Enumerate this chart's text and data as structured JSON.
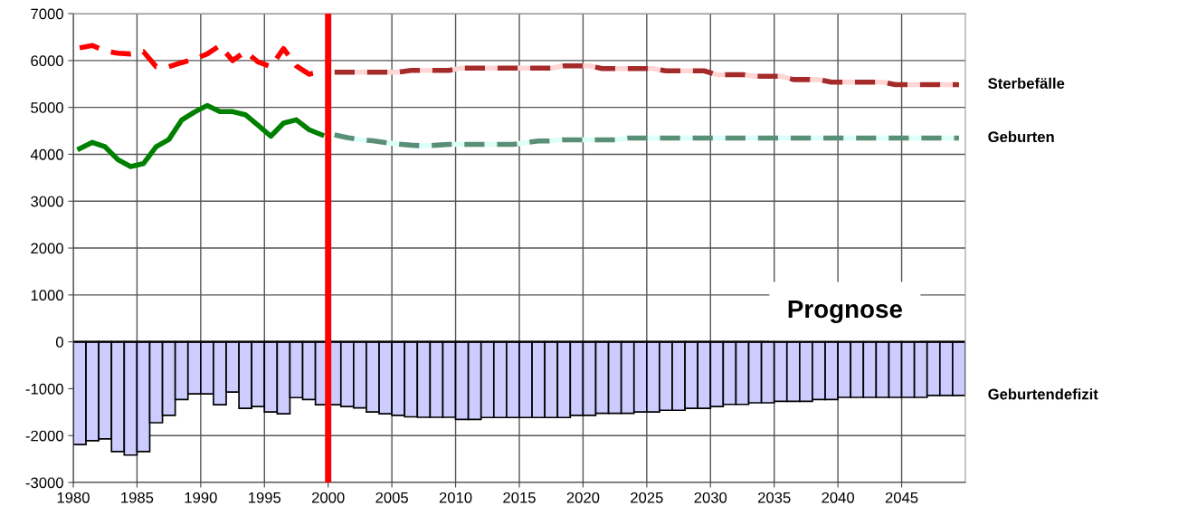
{
  "chart_data": {
    "type": "bar",
    "xlim": [
      1980,
      2050
    ],
    "xticks": [
      1980,
      1985,
      1990,
      1995,
      2000,
      2005,
      2010,
      2015,
      2020,
      2025,
      2030,
      2035,
      2040,
      2045
    ],
    "ylim": [
      -3000,
      7000
    ],
    "yticks": [
      -3000,
      -2000,
      -1000,
      0,
      1000,
      2000,
      3000,
      4000,
      5000,
      6000,
      7000
    ],
    "grid": true,
    "legend": false,
    "annotations": [
      "Prognose"
    ],
    "ref_lines": [
      {
        "axis": "x",
        "value": 2000,
        "color": "#ff0000"
      }
    ],
    "series": [
      {
        "name": "Geburtendefizit",
        "color": "#ccccff",
        "x": [
          1980.5,
          1981.5,
          1982.5,
          1983.5,
          1984.5,
          1985.5,
          1986.5,
          1987.5,
          1988.5,
          1989.5,
          1990.5,
          1991.5,
          1992.5,
          1993.5,
          1994.5,
          1995.5,
          1996.5,
          1997.5,
          1998.5,
          1999.5,
          2000.5,
          2001.5,
          2002.5,
          2003.5,
          2004.5,
          2005.5,
          2006.5,
          2007.5,
          2008.5,
          2009.5,
          2010.5,
          2011.5,
          2012.5,
          2013.5,
          2014.5,
          2015.5,
          2016.5,
          2017.5,
          2018.5,
          2019.5,
          2020.5,
          2021.5,
          2022.5,
          2023.5,
          2024.5,
          2025.5,
          2026.5,
          2027.5,
          2028.5,
          2029.5,
          2030.5,
          2031.5,
          2032.5,
          2033.5,
          2034.5,
          2035.5,
          2036.5,
          2037.5,
          2038.5,
          2039.5,
          2040.5,
          2041.5,
          2042.5,
          2043.5,
          2044.5,
          2045.5,
          2046.5,
          2047.5,
          2048.5,
          2049.5
        ],
        "values": [
          -2190,
          -2110,
          -2070,
          -2340,
          -2415,
          -2340,
          -1725,
          -1570,
          -1230,
          -1110,
          -1110,
          -1340,
          -1070,
          -1420,
          -1380,
          -1495,
          -1535,
          -1190,
          -1230,
          -1340,
          -1340,
          -1380,
          -1410,
          -1495,
          -1535,
          -1570,
          -1600,
          -1610,
          -1610,
          -1610,
          -1655,
          -1655,
          -1615,
          -1615,
          -1615,
          -1615,
          -1615,
          -1615,
          -1615,
          -1570,
          -1570,
          -1525,
          -1525,
          -1525,
          -1495,
          -1495,
          -1460,
          -1460,
          -1420,
          -1420,
          -1380,
          -1335,
          -1335,
          -1300,
          -1300,
          -1270,
          -1270,
          -1270,
          -1230,
          -1230,
          -1185,
          -1185,
          -1185,
          -1185,
          -1185,
          -1185,
          -1185,
          -1145,
          -1145,
          -1145
        ]
      },
      {
        "type": "line",
        "color": "#ff0000",
        "line_style": "dashed",
        "x": [
          1980.5,
          1981.5,
          1982.5,
          1983.5,
          1984.5,
          1985.5,
          1986.5,
          1987.5,
          1988.5,
          1989.5,
          1990.5,
          1991.5,
          1992.5,
          1993.5,
          1994.5,
          1995.5,
          1996.5,
          1997.5,
          1998.5,
          1999.5
        ],
        "values": [
          6270,
          6320,
          6205,
          6155,
          6140,
          6190,
          5870,
          5870,
          5955,
          6030,
          6140,
          6320,
          6000,
          6190,
          5970,
          5870,
          6255,
          5885,
          5710,
          5760
        ]
      },
      {
        "type": "line",
        "color": "#008000",
        "line_style": "solid",
        "x": [
          1980.5,
          1981.5,
          1982.5,
          1983.5,
          1984.5,
          1985.5,
          1986.5,
          1987.5,
          1988.5,
          1989.5,
          1990.5,
          1991.5,
          1992.5,
          1993.5,
          1994.5,
          1995.5,
          1996.5,
          1997.5,
          1998.5,
          1999.5
        ],
        "values": [
          4120,
          4255,
          4160,
          3885,
          3740,
          3800,
          4160,
          4315,
          4730,
          4900,
          5040,
          4910,
          4910,
          4845,
          4620,
          4385,
          4665,
          4735,
          4525,
          4415
        ]
      },
      {
        "name": "Sterbefälle",
        "type": "line",
        "color": "#a52a2a",
        "line_style": "dashed",
        "x": [
          2000.5,
          2001.5,
          2002.5,
          2003.5,
          2004.5,
          2005.5,
          2006.5,
          2007.5,
          2008.5,
          2009.5,
          2010.5,
          2011.5,
          2012.5,
          2013.5,
          2014.5,
          2015.5,
          2016.5,
          2017.5,
          2018.5,
          2019.5,
          2020.5,
          2021.5,
          2022.5,
          2023.5,
          2024.5,
          2025.5,
          2026.5,
          2027.5,
          2028.5,
          2029.5,
          2030.5,
          2031.5,
          2032.5,
          2033.5,
          2034.5,
          2035.5,
          2036.5,
          2037.5,
          2038.5,
          2039.5,
          2040.5,
          2041.5,
          2042.5,
          2043.5,
          2044.5,
          2045.5,
          2046.5,
          2047.5,
          2048.5,
          2049.5
        ],
        "values": [
          5750,
          5750,
          5750,
          5750,
          5750,
          5750,
          5790,
          5790,
          5790,
          5790,
          5840,
          5840,
          5840,
          5840,
          5840,
          5840,
          5840,
          5840,
          5885,
          5885,
          5885,
          5830,
          5830,
          5830,
          5830,
          5830,
          5780,
          5780,
          5780,
          5780,
          5700,
          5700,
          5700,
          5665,
          5665,
          5665,
          5595,
          5595,
          5595,
          5540,
          5540,
          5540,
          5540,
          5540,
          5485,
          5485,
          5485,
          5485,
          5485,
          5485
        ]
      },
      {
        "name": "Geburten",
        "type": "line",
        "color": "#5a8f77",
        "line_style": "dashed",
        "x": [
          2000.5,
          2001.5,
          2002.5,
          2003.5,
          2004.5,
          2005.5,
          2006.5,
          2007.5,
          2008.5,
          2009.5,
          2010.5,
          2011.5,
          2012.5,
          2013.5,
          2014.5,
          2015.5,
          2016.5,
          2017.5,
          2018.5,
          2019.5,
          2020.5,
          2021.5,
          2022.5,
          2023.5,
          2024.5,
          2025.5,
          2026.5,
          2027.5,
          2028.5,
          2029.5,
          2030.5,
          2031.5,
          2032.5,
          2033.5,
          2034.5,
          2035.5,
          2036.5,
          2037.5,
          2038.5,
          2039.5,
          2040.5,
          2041.5,
          2042.5,
          2043.5,
          2044.5,
          2045.5,
          2046.5,
          2047.5,
          2048.5,
          2049.5
        ],
        "values": [
          4415,
          4355,
          4310,
          4290,
          4250,
          4220,
          4195,
          4180,
          4195,
          4210,
          4210,
          4210,
          4210,
          4210,
          4210,
          4250,
          4285,
          4285,
          4310,
          4310,
          4310,
          4310,
          4310,
          4345,
          4345,
          4345,
          4345,
          4345,
          4345,
          4345,
          4345,
          4345,
          4345,
          4345,
          4345,
          4345,
          4345,
          4345,
          4345,
          4345,
          4345,
          4345,
          4345,
          4345,
          4345,
          4345,
          4345,
          4345,
          4345,
          4345
        ]
      }
    ]
  }
}
